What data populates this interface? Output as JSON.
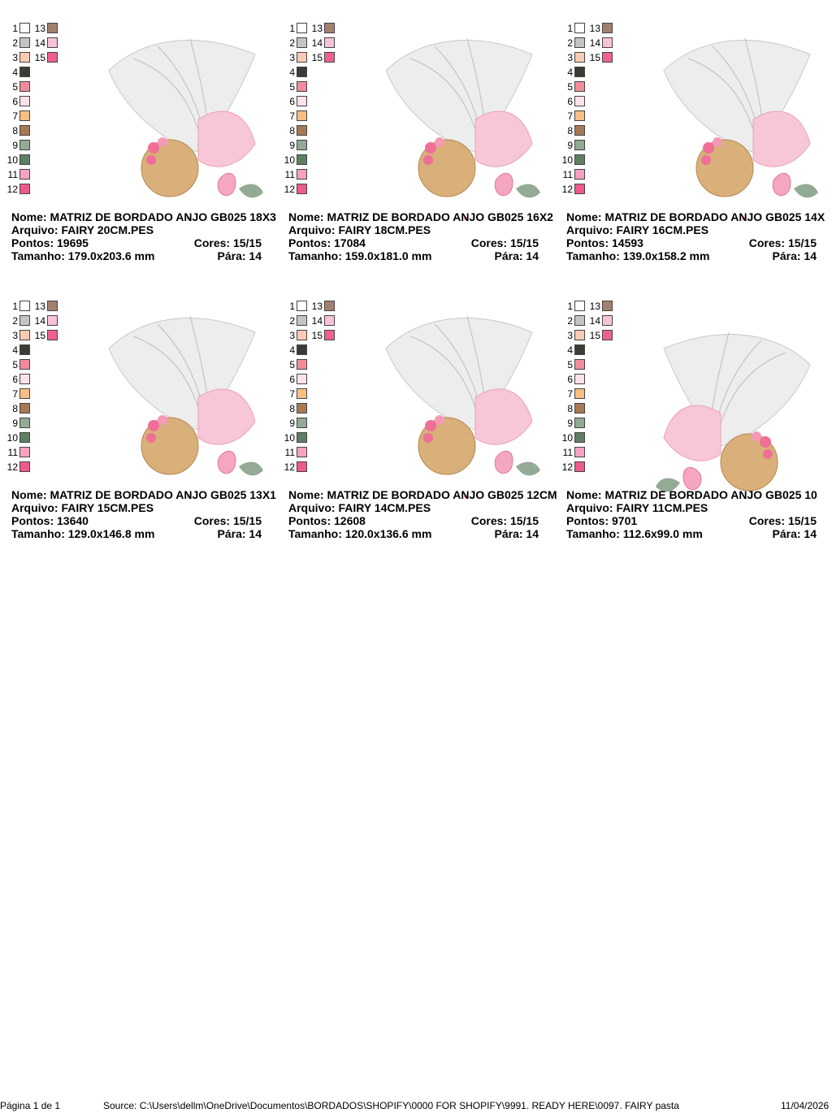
{
  "labels": {
    "name": "Nome:",
    "file": "Arquivo:",
    "stitches": "Pontos:",
    "colors": "Cores:",
    "size": "Tamanho:",
    "stops": "Pára:"
  },
  "palette": [
    {
      "number": 1,
      "color": "#ffffff"
    },
    {
      "number": 2,
      "color": "#c4c4c4"
    },
    {
      "number": 3,
      "color": "#f9cbb4"
    },
    {
      "number": 4,
      "color": "#3d3a36"
    },
    {
      "number": 5,
      "color": "#f08c9c"
    },
    {
      "number": 6,
      "color": "#fde2ec"
    },
    {
      "number": 7,
      "color": "#f6bf84"
    },
    {
      "number": 8,
      "color": "#a67a55"
    },
    {
      "number": 9,
      "color": "#93aa94"
    },
    {
      "number": 10,
      "color": "#5d7f62"
    },
    {
      "number": 11,
      "color": "#f6a2c2"
    },
    {
      "number": 12,
      "color": "#ee5a8c"
    },
    {
      "number": 13,
      "color": "#a2806e"
    },
    {
      "number": 14,
      "color": "#f9c2da"
    },
    {
      "number": 15,
      "color": "#ef6091"
    }
  ],
  "designs": [
    {
      "name": "MATRIZ DE BORDADO ANJO GB025 18X3",
      "file": "FAIRY 20CM.PES",
      "stitches": 19695,
      "colors": "15/15",
      "size": "179.0x203.6 mm",
      "stops": 14
    },
    {
      "name": "MATRIZ DE BORDADO ANJO GB025 16X2",
      "file": "FAIRY 18CM.PES",
      "stitches": 17084,
      "colors": "15/15",
      "size": "159.0x181.0 mm",
      "stops": 14
    },
    {
      "name": "MATRIZ DE BORDADO ANJO GB025 14X",
      "file": "FAIRY 16CM.PES",
      "stitches": 14593,
      "colors": "15/15",
      "size": "139.0x158.2 mm",
      "stops": 14
    },
    {
      "name": "MATRIZ DE BORDADO ANJO GB025 13X1",
      "file": "FAIRY 15CM.PES",
      "stitches": 13640,
      "colors": "15/15",
      "size": "129.0x146.8 mm",
      "stops": 14
    },
    {
      "name": "MATRIZ DE BORDADO ANJO GB025 12CM",
      "file": "FAIRY 14CM.PES",
      "stitches": 12608,
      "colors": "15/15",
      "size": "120.0x136.6 mm",
      "stops": 14
    },
    {
      "name": "MATRIZ DE BORDADO ANJO GB025 10",
      "file": "FAIRY 11CM.PES",
      "stitches": 9701,
      "colors": "15/15",
      "size": "112.6x99.0 mm",
      "stops": 14
    }
  ],
  "footer": {
    "page": "Página 1 de 1",
    "source": "Source: C:\\Users\\dellm\\OneDrive\\Documentos\\BORDADOS\\SHOPIFY\\0000 FOR SHOPIFY\\9991. READY HERE\\0097. FAIRY pasta",
    "date": "11/04/2026"
  }
}
